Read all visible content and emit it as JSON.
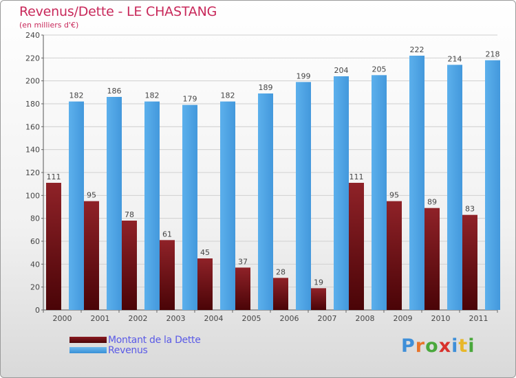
{
  "title": "Revenus/Dette - LE CHASTANG",
  "subtitle": "(en milliers d'€)",
  "logo_text": "Proxiti",
  "colors": {
    "debt": "#6b0f14",
    "revenue": "#4ea3e2",
    "title": "#c8285a",
    "legend_text": "#5a5ae6"
  },
  "chart_data": {
    "type": "bar",
    "categories": [
      "2000",
      "2001",
      "2002",
      "2003",
      "2004",
      "2005",
      "2006",
      "2007",
      "2008",
      "2009",
      "2010",
      "2011"
    ],
    "series": [
      {
        "name": "Montant de la Dette",
        "values": [
          111,
          95,
          78,
          61,
          45,
          37,
          28,
          19,
          111,
          95,
          89,
          83
        ]
      },
      {
        "name": "Revenus",
        "values": [
          182,
          186,
          182,
          179,
          182,
          189,
          199,
          204,
          205,
          222,
          214,
          218
        ]
      }
    ],
    "title": "Revenus/Dette - LE CHASTANG",
    "subtitle": "(en milliers d'€)",
    "ylim": [
      0,
      240
    ],
    "yticks": [
      0,
      20,
      40,
      60,
      80,
      100,
      120,
      140,
      160,
      180,
      200,
      220,
      240
    ],
    "grid": true,
    "legend_position": "bottom-left"
  }
}
